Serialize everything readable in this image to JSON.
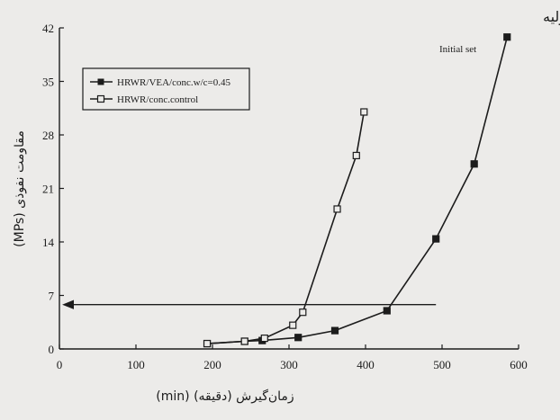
{
  "chart_data": {
    "type": "line",
    "xlabel": "زمان‌گیرش (دقیقه)  (min)",
    "ylabel": "مقاومت نفوذی  (MPs)",
    "xlim": [
      0,
      600
    ],
    "ylim": [
      0,
      42
    ],
    "x_ticks": [
      0,
      100,
      200,
      300,
      400,
      500,
      600
    ],
    "y_ticks": [
      0,
      7,
      14,
      21,
      28,
      35,
      42
    ],
    "legend_position": "top-left",
    "series": [
      {
        "name": "HRWR/VEA/conc.w/c=0.45",
        "marker": "filled-square",
        "x": [
          193,
          242,
          265,
          312,
          360,
          428,
          492,
          542,
          585
        ],
        "y": [
          0.7,
          1.0,
          1.1,
          1.5,
          2.4,
          5.0,
          14.4,
          24.2,
          40.8
        ]
      },
      {
        "name": "HRWR/conc.control",
        "marker": "open-square",
        "x": [
          193,
          242,
          268,
          305,
          318,
          363,
          388,
          398
        ],
        "y": [
          0.7,
          1.0,
          1.4,
          3.1,
          4.8,
          18.3,
          25.3,
          31.0
        ]
      }
    ],
    "reference_line": {
      "y": 5.8,
      "x_start": 492,
      "x_end": 8,
      "arrow": "left"
    },
    "annotations": {
      "fa": "گیرش اولیه",
      "en": "Initial set"
    },
    "colors": {
      "ink": "#1c1c1c",
      "background": "#ecebe9"
    }
  }
}
